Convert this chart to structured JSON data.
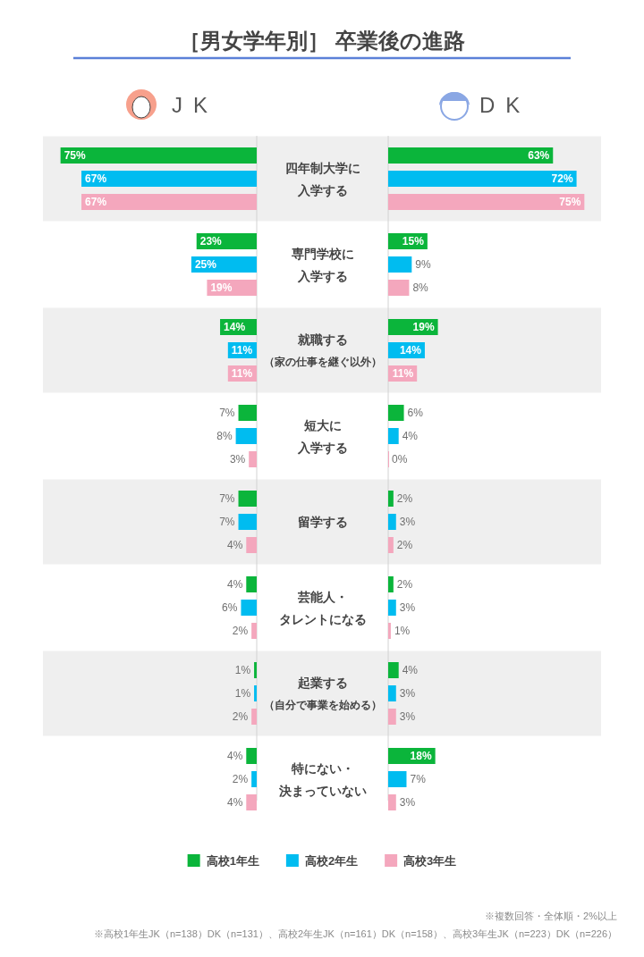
{
  "chart_data": [
    {
      "type": "bar",
      "orientation": "horizontal",
      "title": "［男女学年別］ 卒業後の進路",
      "subtitle": "JK",
      "categories": [
        "四年制大学に入学する",
        "専門学校に入学する",
        "就職する（家の仕事を継ぐ以外）",
        "短大に入学する",
        "留学する",
        "芸能人・タレントになる",
        "起業する（自分で事業を始める）",
        "特にない・決まっていない"
      ],
      "series": [
        {
          "name": "高校1年生",
          "color": "#0bb53b",
          "values": [
            75,
            23,
            14,
            7,
            7,
            4,
            1,
            4
          ],
          "value_labels": [
            "75%",
            "23%",
            "14%",
            "7%",
            "7%",
            "4%",
            "1%",
            "4%"
          ]
        },
        {
          "name": "高校2年生",
          "color": "#00bcf0",
          "values": [
            67,
            25,
            11,
            8,
            7,
            6,
            1,
            2
          ],
          "value_labels": [
            "67%",
            "25%",
            "11%",
            "8%",
            "7%",
            "6%",
            "1%",
            "2%"
          ]
        },
        {
          "name": "高校3年生",
          "color": "#f4a7bd",
          "values": [
            67,
            19,
            11,
            3,
            4,
            2,
            2,
            4
          ],
          "value_labels": [
            "67%",
            "19%",
            "11%",
            "3%",
            "4%",
            "2%",
            "2%",
            "4%"
          ]
        }
      ],
      "legend": "bottom"
    },
    {
      "type": "bar",
      "orientation": "horizontal",
      "subtitle": "DK",
      "series": [
        {
          "color": "#0bb53b",
          "values": [
            63,
            15,
            19,
            6,
            2,
            2,
            4,
            18
          ],
          "value_labels": [
            "63%",
            "15%",
            "19%",
            "6%",
            "2%",
            "2%",
            "4%",
            "18%"
          ]
        },
        {
          "color": "#00bcf0",
          "values": [
            72,
            9,
            14,
            4,
            3,
            3,
            3,
            7
          ],
          "value_labels": [
            "72%",
            "9%",
            "14%",
            "4%",
            "3%",
            "3%",
            "3%",
            "7%"
          ]
        },
        {
          "color": "#f4a7bd",
          "values": [
            75,
            8,
            11,
            0,
            2,
            1,
            3,
            3
          ],
          "value_labels": [
            "75%",
            "8%",
            "11%",
            "0%",
            "2%",
            "1%",
            "3%",
            "3%"
          ]
        }
      ],
      "annotations": [
        "※複数回答・全体順・2%以上",
        "※高校1年生JK（n=138）DK（n=131）、高校2年生JK（n=161）DK（n=158）、高校3年生JK（n=223）DK（n=226）"
      ]
    }
  ]
}
